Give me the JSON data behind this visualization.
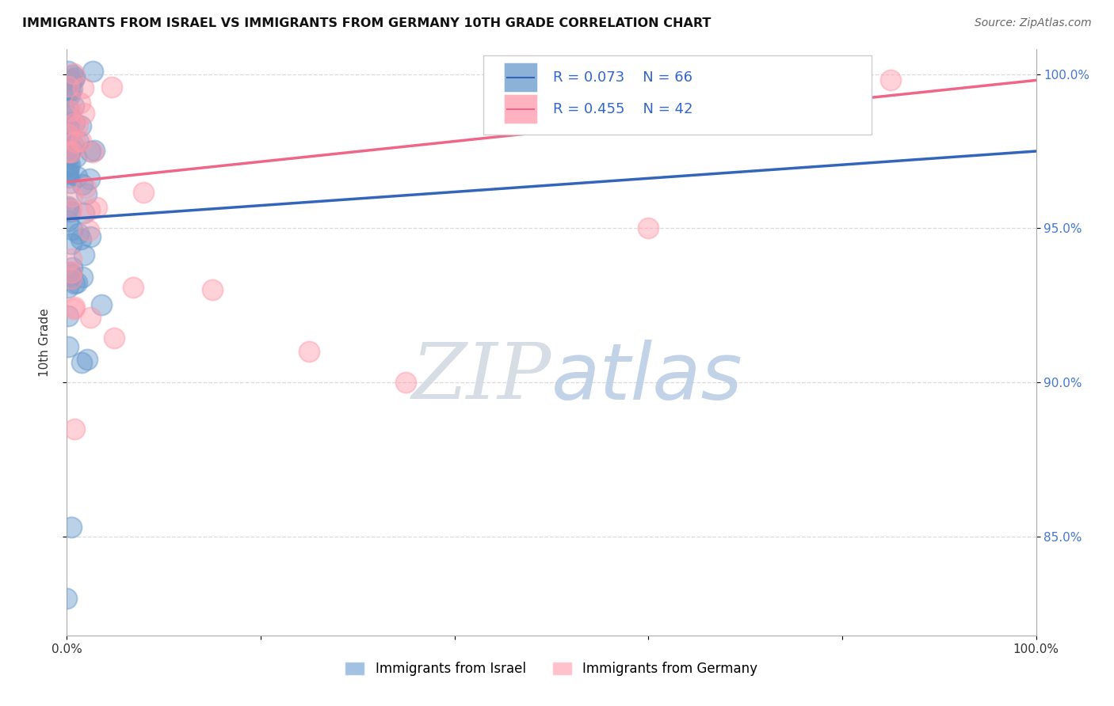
{
  "title": "IMMIGRANTS FROM ISRAEL VS IMMIGRANTS FROM GERMANY 10TH GRADE CORRELATION CHART",
  "source_text": "Source: ZipAtlas.com",
  "legend_israel": "Immigrants from Israel",
  "legend_germany": "Immigrants from Germany",
  "ylabel": "10th Grade",
  "xlim": [
    0.0,
    1.0
  ],
  "ylim": [
    0.818,
    1.008
  ],
  "xticks": [
    0.0,
    0.2,
    0.4,
    0.6,
    0.8,
    1.0
  ],
  "xtick_labels": [
    "0.0%",
    "",
    "",
    "",
    "",
    "100.0%"
  ],
  "yticks": [
    0.85,
    0.9,
    0.95,
    1.0
  ],
  "right_ytick_labels": [
    "85.0%",
    "90.0%",
    "95.0%",
    "100.0%"
  ],
  "R_israel": 0.073,
  "N_israel": 66,
  "R_germany": 0.455,
  "N_germany": 42,
  "color_israel": "#6699CC",
  "color_germany": "#FF99AA",
  "blue_line_x0": 0.0,
  "blue_line_y0": 0.953,
  "blue_line_x1": 1.0,
  "blue_line_y1": 0.975,
  "pink_line_x0": 0.0,
  "pink_line_y0": 0.965,
  "pink_line_x1": 1.0,
  "pink_line_y1": 0.998,
  "watermark_zip": "ZIP",
  "watermark_atlas": "atlas"
}
